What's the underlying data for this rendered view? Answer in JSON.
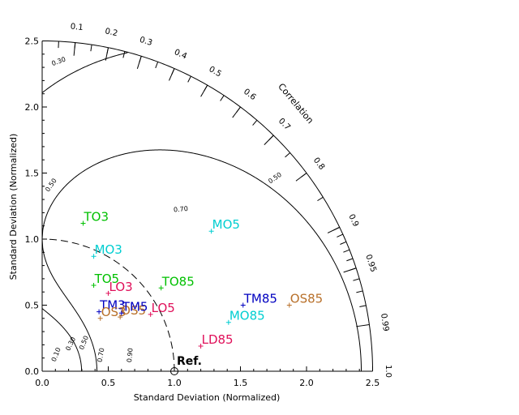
{
  "chart_data": {
    "type": "scatter",
    "subtype": "taylor-diagram",
    "xlabel": "Standard Deviation (Normalized)",
    "ylabel": "Standard Deviation (Normalized)",
    "arc_label": "Correlation",
    "xlim": [
      0,
      2.5
    ],
    "ylim": [
      0,
      2.5
    ],
    "x_ticks": [
      "0.0",
      "0.5",
      "1.0",
      "1.5",
      "2.0",
      "2.5"
    ],
    "y_ticks": [
      "0.0",
      "0.5",
      "1.0",
      "1.5",
      "2.0",
      "2.5"
    ],
    "correlation_ticks": [
      {
        "r": 0.1,
        "label": "0.1"
      },
      {
        "r": 0.2,
        "label": "0.2"
      },
      {
        "r": 0.3,
        "label": "0.3"
      },
      {
        "r": 0.4,
        "label": "0.4"
      },
      {
        "r": 0.5,
        "label": "0.5"
      },
      {
        "r": 0.6,
        "label": "0.6"
      },
      {
        "r": 0.7,
        "label": "0.7"
      },
      {
        "r": 0.8,
        "label": "0.8"
      },
      {
        "r": 0.9,
        "label": "0.9"
      },
      {
        "r": 0.95,
        "label": "0.95"
      },
      {
        "r": 0.99,
        "label": "0.99"
      },
      {
        "r": 1.0,
        "label": "1.0"
      }
    ],
    "skill_contours": [
      0.1,
      0.3,
      0.5,
      0.7,
      0.9
    ],
    "skill_contour_labels": [
      {
        "text": "0.10",
        "x": 0.12,
        "y": 0.12,
        "rot": -68
      },
      {
        "text": "0.30",
        "x": 0.23,
        "y": 0.2,
        "rot": -64
      },
      {
        "text": "0.50",
        "x": 0.33,
        "y": 0.21,
        "rot": -68
      },
      {
        "text": "0.70",
        "x": 0.46,
        "y": 0.12,
        "rot": -80
      },
      {
        "text": "0.90",
        "x": 0.68,
        "y": 0.12,
        "rot": -85
      },
      {
        "text": "0.50",
        "x": 0.08,
        "y": 1.4,
        "rot": -55
      },
      {
        "text": "0.70",
        "x": 1.05,
        "y": 1.21,
        "rot": -5
      },
      {
        "text": "0.50",
        "x": 1.77,
        "y": 1.45,
        "rot": -35
      },
      {
        "text": "0.30",
        "x": 0.13,
        "y": 2.33,
        "rot": -20
      }
    ],
    "reference": {
      "x": 1.0,
      "y": 0.0,
      "label": "Ref."
    },
    "points": [
      {
        "label": "TO3",
        "x": 0.31,
        "y": 1.12,
        "color": "#00c000"
      },
      {
        "label": "MO3",
        "x": 0.39,
        "y": 0.87,
        "color": "#00ced1"
      },
      {
        "label": "MO5",
        "x": 1.28,
        "y": 1.06,
        "color": "#00ced1"
      },
      {
        "label": "TO5",
        "x": 0.39,
        "y": 0.65,
        "color": "#00c000"
      },
      {
        "label": "TO85",
        "x": 0.9,
        "y": 0.63,
        "color": "#00c000"
      },
      {
        "label": "LO3",
        "x": 0.5,
        "y": 0.59,
        "color": "#e0105a"
      },
      {
        "label": "TM3",
        "x": 0.43,
        "y": 0.45,
        "color": "#0000c0"
      },
      {
        "label": "OS3",
        "x": 0.44,
        "y": 0.4,
        "color": "#b8702a"
      },
      {
        "label": "OS5",
        "x": 0.59,
        "y": 0.41,
        "color": "#b8702a"
      },
      {
        "label": "TM5",
        "x": 0.6,
        "y": 0.44,
        "color": "#0000c0"
      },
      {
        "label": "LO5",
        "x": 0.82,
        "y": 0.43,
        "color": "#e0105a"
      },
      {
        "label": "TM85",
        "x": 1.52,
        "y": 0.5,
        "color": "#0000c0"
      },
      {
        "label": "OS85",
        "x": 1.87,
        "y": 0.5,
        "color": "#b8702a"
      },
      {
        "label": "MO85",
        "x": 1.41,
        "y": 0.37,
        "color": "#00ced1"
      },
      {
        "label": "LD85",
        "x": 1.2,
        "y": 0.19,
        "color": "#e0105a"
      }
    ]
  }
}
